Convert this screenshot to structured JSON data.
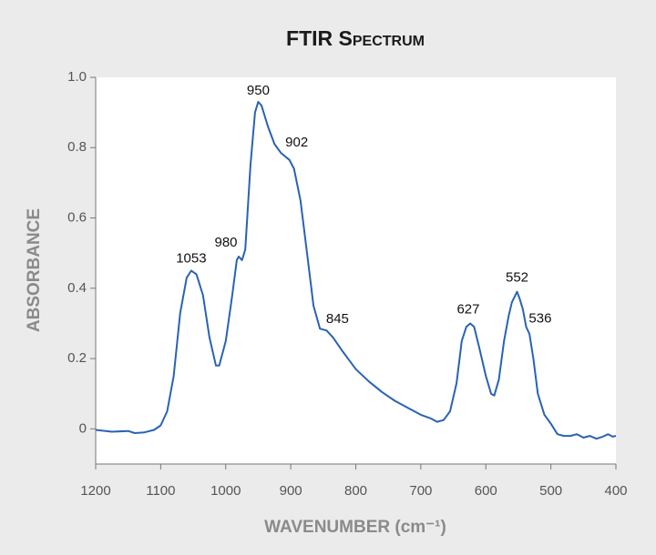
{
  "chart_data": {
    "type": "line",
    "title": "FTIR Spectrum",
    "xlabel": "WAVENUMBER (cm⁻¹)",
    "ylabel": "ABSORBANCE",
    "xlim": [
      1200,
      400
    ],
    "ylim": [
      -0.1,
      1
    ],
    "xticks": [
      1200,
      1100,
      1000,
      900,
      800,
      700,
      600,
      500,
      400
    ],
    "yticks": [
      0,
      0.2,
      0.4,
      0.6,
      0.8,
      {
        "value": 1,
        "label": "1.0"
      }
    ],
    "color": "#2a62b4",
    "x": [
      1200,
      1175,
      1150,
      1140,
      1125,
      1110,
      1100,
      1090,
      1080,
      1070,
      1060,
      1053,
      1045,
      1035,
      1025,
      1015,
      1010,
      1000,
      990,
      983,
      980,
      975,
      970,
      962,
      955,
      950,
      945,
      935,
      925,
      915,
      902,
      895,
      885,
      875,
      865,
      855,
      845,
      835,
      820,
      800,
      780,
      760,
      740,
      720,
      700,
      685,
      675,
      665,
      655,
      645,
      637,
      630,
      624,
      618,
      610,
      600,
      592,
      587,
      580,
      572,
      565,
      560,
      552,
      548,
      543,
      538,
      533,
      527,
      520,
      510,
      500,
      490,
      480,
      470,
      460,
      450,
      440,
      430,
      420,
      412,
      405,
      400
    ],
    "y": [
      -0.003,
      -0.008,
      -0.006,
      -0.012,
      -0.01,
      -0.003,
      0.01,
      0.05,
      0.15,
      0.33,
      0.43,
      0.45,
      0.44,
      0.38,
      0.26,
      0.18,
      0.18,
      0.25,
      0.38,
      0.48,
      0.49,
      0.48,
      0.51,
      0.75,
      0.9,
      0.93,
      0.92,
      0.86,
      0.81,
      0.785,
      0.765,
      0.74,
      0.65,
      0.5,
      0.35,
      0.285,
      0.28,
      0.26,
      0.22,
      0.17,
      0.135,
      0.105,
      0.08,
      0.06,
      0.04,
      0.03,
      0.02,
      0.025,
      0.05,
      0.13,
      0.25,
      0.29,
      0.3,
      0.29,
      0.23,
      0.15,
      0.1,
      0.095,
      0.14,
      0.25,
      0.32,
      0.36,
      0.39,
      0.37,
      0.34,
      0.29,
      0.27,
      0.2,
      0.1,
      0.04,
      0.015,
      -0.015,
      -0.02,
      -0.02,
      -0.015,
      -0.025,
      -0.02,
      -0.028,
      -0.022,
      -0.015,
      -0.022,
      -0.02
    ],
    "annotations": [
      {
        "text": "1053",
        "x": 1053,
        "y": 0.45
      },
      {
        "text": "980",
        "x": 980,
        "y": 0.49
      },
      {
        "text": "950",
        "x": 950,
        "y": 0.93
      },
      {
        "text": "902",
        "x": 902,
        "y": 0.765
      },
      {
        "text": "845",
        "x": 845,
        "y": 0.28
      },
      {
        "text": "627",
        "x": 627,
        "y": 0.3
      },
      {
        "text": "552",
        "x": 552,
        "y": 0.39
      },
      {
        "text": "536",
        "x": 536,
        "y": 0.29
      }
    ]
  }
}
